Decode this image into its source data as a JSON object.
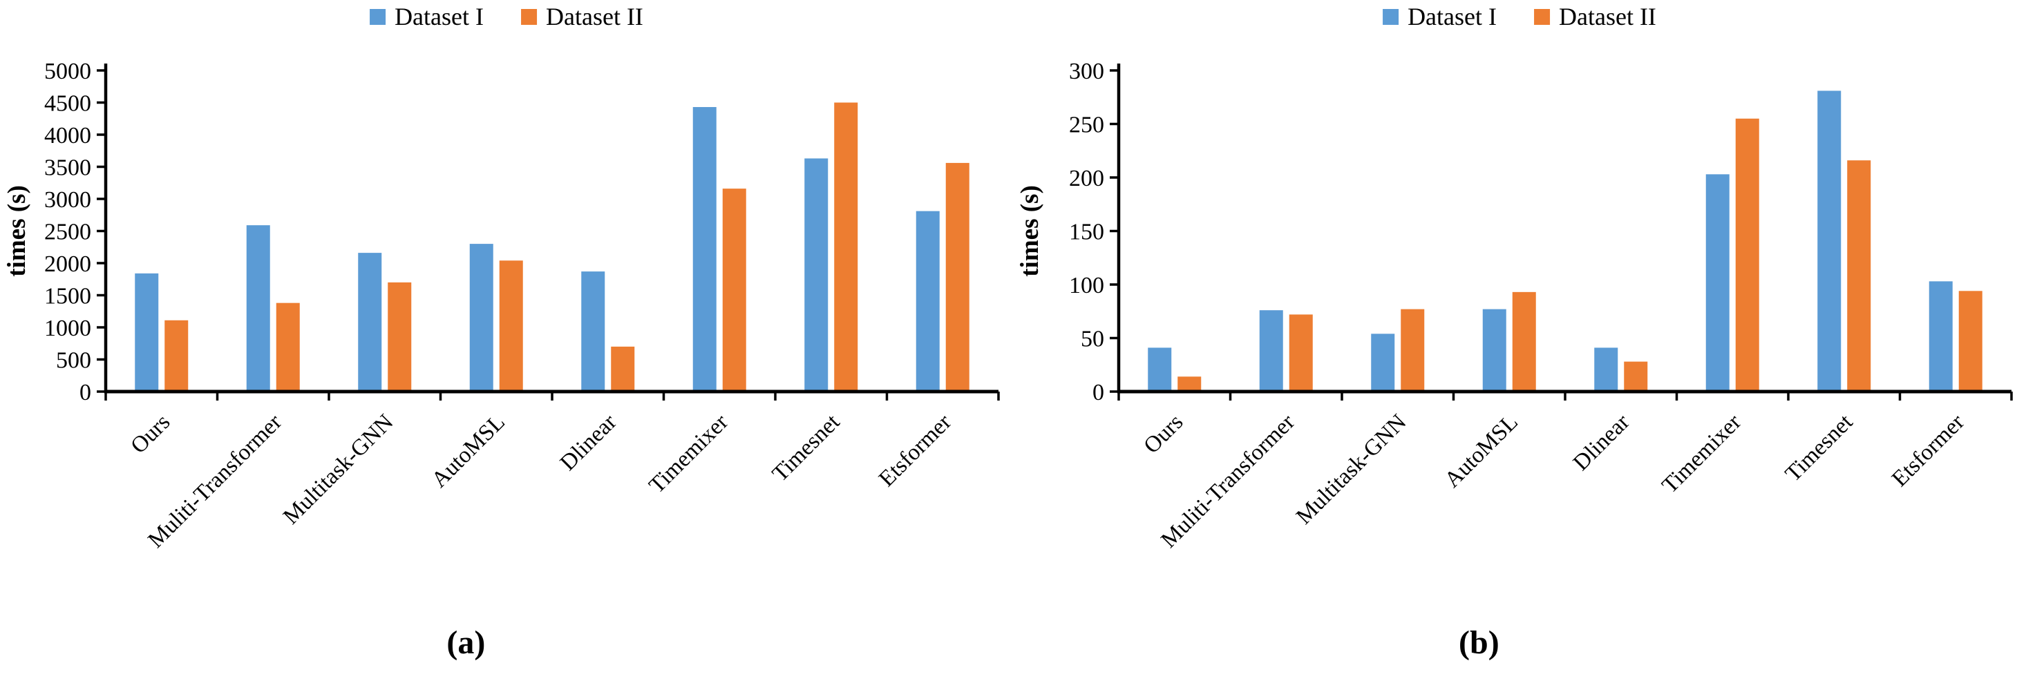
{
  "captions": {
    "a": "(a)",
    "b": "(b)"
  },
  "legend": {
    "items": [
      {
        "label": "Dataset I",
        "color": "#5B9BD5"
      },
      {
        "label": "Dataset II",
        "color": "#ED7D31"
      }
    ]
  },
  "colors": {
    "dataset1": "#5B9BD5",
    "dataset2": "#ED7D31",
    "axis": "#000000"
  },
  "chart_data": [
    {
      "id": "a",
      "type": "bar",
      "title": "",
      "xlabel": "",
      "ylabel": "times (s)",
      "ylim": [
        0,
        5000
      ],
      "ytick_step": 500,
      "grid": false,
      "legend_position": "top-center",
      "categories": [
        "Ours",
        "Muliti-Transformer",
        "Multitask-GNN",
        "AutoMSL",
        "Dlinear",
        "Timemixer",
        "Timesnet",
        "Etsformer"
      ],
      "series": [
        {
          "name": "Dataset I",
          "color": "#5B9BD5",
          "values": [
            1840,
            2590,
            2160,
            2300,
            1870,
            4430,
            3630,
            2810
          ]
        },
        {
          "name": "Dataset II",
          "color": "#ED7D31",
          "values": [
            1110,
            1380,
            1700,
            2040,
            700,
            3160,
            4500,
            3560
          ]
        }
      ]
    },
    {
      "id": "b",
      "type": "bar",
      "title": "",
      "xlabel": "",
      "ylabel": "times (s)",
      "ylim": [
        0,
        300
      ],
      "ytick_step": 50,
      "grid": false,
      "legend_position": "top-center",
      "categories": [
        "Ours",
        "Muliti-Transformer",
        "Multitask-GNN",
        "AutoMSL",
        "Dlinear",
        "Timemixer",
        "Timesnet",
        "Etsformer"
      ],
      "series": [
        {
          "name": "Dataset I",
          "color": "#5B9BD5",
          "values": [
            41,
            76,
            54,
            77,
            41,
            203,
            281,
            103
          ]
        },
        {
          "name": "Dataset II",
          "color": "#ED7D31",
          "values": [
            14,
            72,
            77,
            93,
            28,
            255,
            216,
            94
          ]
        }
      ]
    }
  ]
}
